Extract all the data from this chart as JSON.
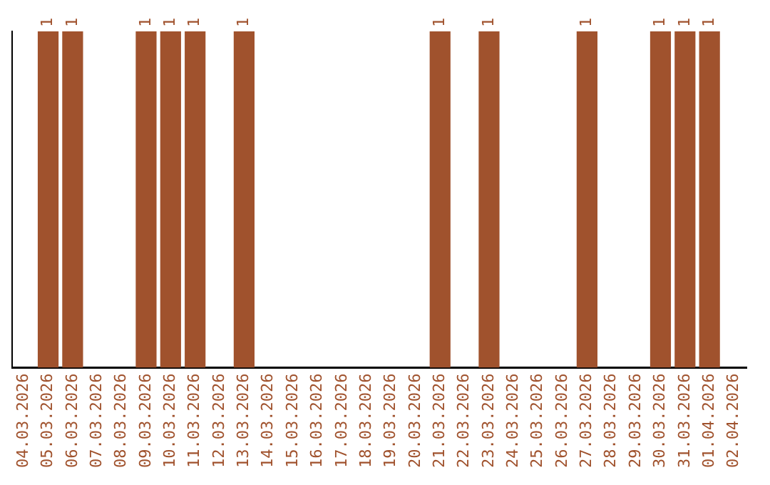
{
  "chart_data": {
    "type": "bar",
    "categories": [
      "04.03.2026",
      "05.03.2026",
      "06.03.2026",
      "07.03.2026",
      "08.03.2026",
      "09.03.2026",
      "10.03.2026",
      "11.03.2026",
      "12.03.2026",
      "13.03.2026",
      "14.03.2026",
      "15.03.2026",
      "16.03.2026",
      "17.03.2026",
      "18.03.2026",
      "19.03.2026",
      "20.03.2026",
      "21.03.2026",
      "22.03.2026",
      "23.03.2026",
      "24.03.2026",
      "25.03.2026",
      "26.03.2026",
      "27.03.2026",
      "28.03.2026",
      "29.03.2026",
      "30.03.2026",
      "31.03.2026",
      "01.04.2026",
      "02.04.2026"
    ],
    "values": [
      0,
      1,
      1,
      0,
      0,
      1,
      1,
      1,
      0,
      1,
      0,
      0,
      0,
      0,
      0,
      0,
      0,
      1,
      0,
      1,
      0,
      0,
      0,
      1,
      0,
      0,
      1,
      1,
      1,
      0
    ],
    "value_labels": [
      null,
      "1",
      "1",
      null,
      null,
      "1",
      "1",
      "1",
      null,
      "1",
      null,
      null,
      null,
      null,
      null,
      null,
      null,
      "1",
      null,
      "1",
      null,
      null,
      null,
      "1",
      null,
      null,
      "1",
      "1",
      "1",
      null
    ],
    "color": "#a0522d",
    "tick_labels": "x",
    "grid": false,
    "legend": false
  }
}
